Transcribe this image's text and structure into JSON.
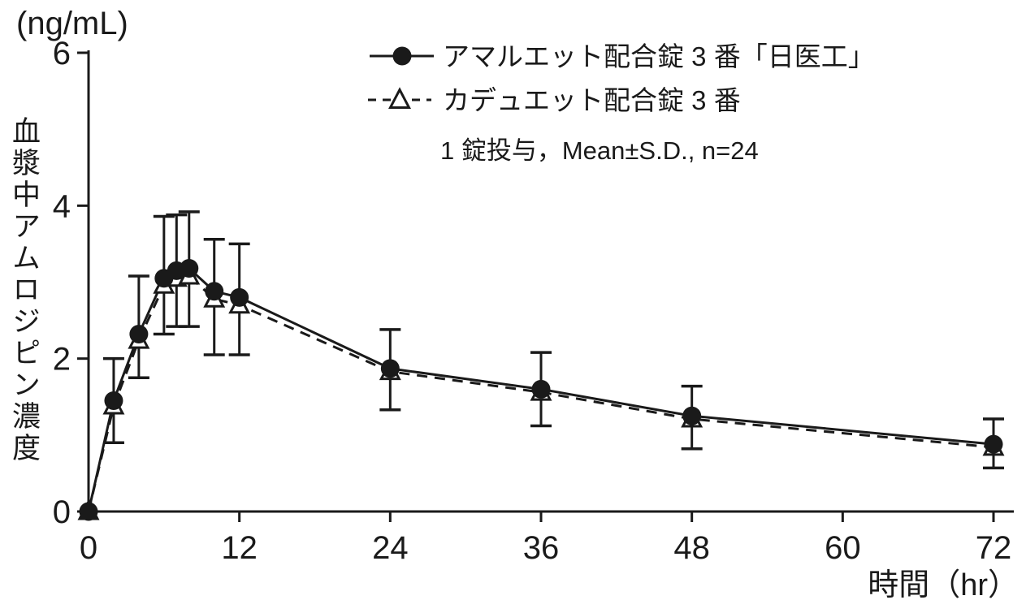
{
  "colors": {
    "ink": "#1a1a1a",
    "background": "#ffffff"
  },
  "chart_data": {
    "type": "line",
    "title": "",
    "xlabel": "時間（hr）",
    "ylabel": "血漿中アムロジピン濃度",
    "y_unit": "(ng/mL)",
    "annotation": "1 錠投与，Mean±S.D., n=24",
    "x": [
      0,
      2,
      4,
      6,
      7,
      8,
      10,
      12,
      24,
      36,
      48,
      72
    ],
    "x_ticks": [
      0,
      12,
      24,
      36,
      48,
      60,
      72
    ],
    "y_ticks": [
      0,
      2,
      4,
      6
    ],
    "xlim": [
      0,
      72
    ],
    "ylim": [
      0,
      6
    ],
    "grid": false,
    "legend_position": "top-center",
    "series": [
      {
        "name": "アマルエット配合錠 3 番「日医工」",
        "marker": "filled-circle",
        "line_style": "solid",
        "values": [
          0,
          1.45,
          2.32,
          3.05,
          3.15,
          3.18,
          2.88,
          2.8,
          1.87,
          1.6,
          1.25,
          0.88
        ],
        "error_low": [
          null,
          0.9,
          1.75,
          2.32,
          2.42,
          2.42,
          2.05,
          2.05,
          1.33,
          1.12,
          0.82,
          0.57
        ],
        "error_high": [
          null,
          2.0,
          3.08,
          3.86,
          3.88,
          3.92,
          3.56,
          3.5,
          2.38,
          2.08,
          1.64,
          1.21
        ]
      },
      {
        "name": "カデュエット配合錠 3 番",
        "marker": "open-triangle",
        "line_style": "dashed",
        "values": [
          0,
          1.38,
          2.24,
          2.96,
          3.05,
          3.08,
          2.78,
          2.7,
          1.83,
          1.56,
          1.21,
          0.84
        ]
      }
    ]
  }
}
